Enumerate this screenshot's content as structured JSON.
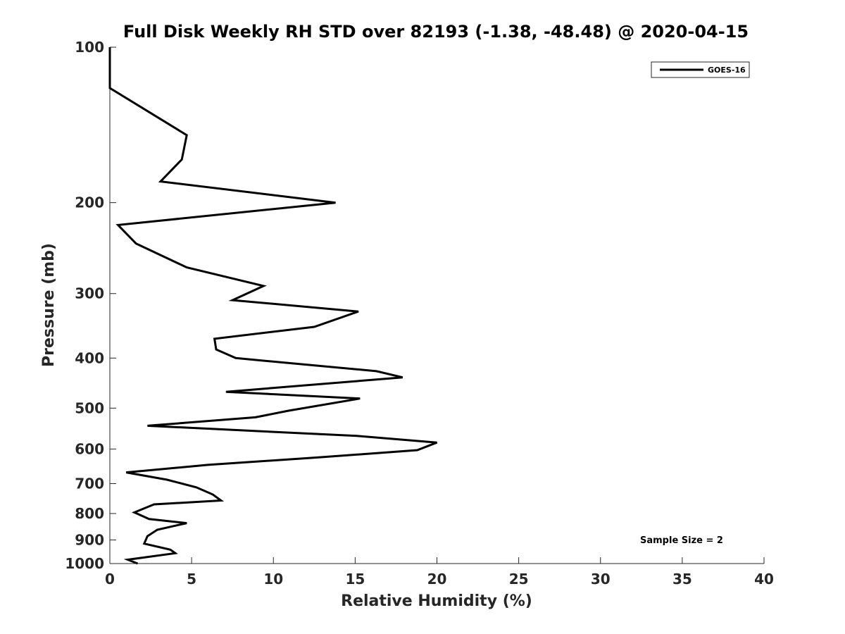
{
  "chart_data": {
    "type": "line",
    "title": "Full Disk Weekly RH STD over 82193 (-1.38, -48.48) @ 2020-04-15",
    "xlabel": "Relative Humidity (%)",
    "ylabel": "Pressure (mb)",
    "xlim": [
      0,
      40
    ],
    "ylim": [
      100,
      1000
    ],
    "y_scale": "log",
    "y_reversed": true,
    "xticks": [
      0,
      5,
      10,
      15,
      20,
      25,
      30,
      35,
      40
    ],
    "yticks": [
      100,
      200,
      300,
      400,
      500,
      600,
      700,
      800,
      900,
      1000
    ],
    "grid": false,
    "legend_position": "top-right",
    "annotation": "Sample Size = 2",
    "series": [
      {
        "name": "GOES-16",
        "color": "#000000",
        "points": [
          [
            0,
            100
          ],
          [
            0,
            120
          ],
          [
            4.7,
            148
          ],
          [
            4.4,
            165
          ],
          [
            3.1,
            182
          ],
          [
            13.8,
            200
          ],
          [
            0.5,
            221
          ],
          [
            1.6,
            240
          ],
          [
            4.7,
            267
          ],
          [
            9.4,
            290
          ],
          [
            7.5,
            309
          ],
          [
            15.2,
            325
          ],
          [
            12.5,
            348
          ],
          [
            6.4,
            367
          ],
          [
            6.5,
            385
          ],
          [
            7.7,
            400
          ],
          [
            16.3,
            424
          ],
          [
            17.9,
            436
          ],
          [
            7.1,
            465
          ],
          [
            15.3,
            479
          ],
          [
            10.9,
            506
          ],
          [
            8.9,
            521
          ],
          [
            2.3,
            541
          ],
          [
            15.1,
            566
          ],
          [
            20.0,
            583
          ],
          [
            18.8,
            603
          ],
          [
            12.7,
            623
          ],
          [
            6.0,
            644
          ],
          [
            1.0,
            666
          ],
          [
            3.5,
            688
          ],
          [
            5.3,
            712
          ],
          [
            6.3,
            735
          ],
          [
            6.8,
            755
          ],
          [
            2.7,
            768
          ],
          [
            1.5,
            796
          ],
          [
            2.4,
            820
          ],
          [
            4.7,
            835
          ],
          [
            2.9,
            860
          ],
          [
            2.3,
            885
          ],
          [
            2.1,
            915
          ],
          [
            3.7,
            940
          ],
          [
            4.0,
            955
          ],
          [
            1.1,
            983
          ],
          [
            1.7,
            1000
          ]
        ]
      }
    ]
  }
}
